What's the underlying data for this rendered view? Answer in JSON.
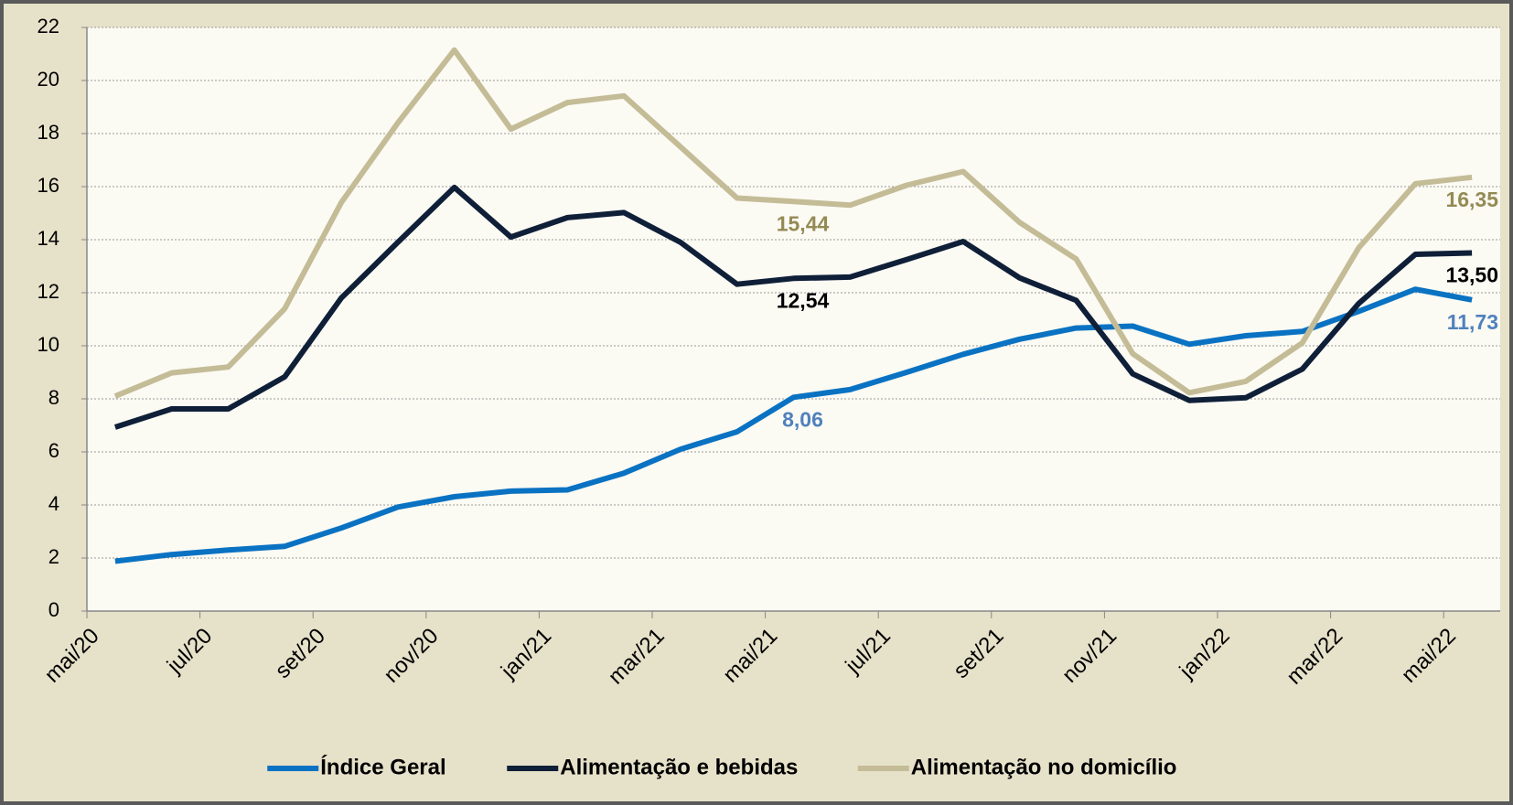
{
  "chart_data": {
    "type": "line",
    "categories": [
      "mai/20",
      null,
      "jul/20",
      null,
      "set/20",
      null,
      "nov/20",
      null,
      "jan/21",
      null,
      "mar/21",
      null,
      "mai/21",
      null,
      "jul/21",
      null,
      "set/21",
      null,
      "nov/21",
      null,
      "jan/22",
      null,
      "mar/22",
      null,
      "mai/22"
    ],
    "series": [
      {
        "name": "Índice Geral",
        "color": "#0a72c2",
        "label_color": "#4f81bd",
        "values": [
          1.88,
          2.13,
          2.3,
          2.44,
          3.13,
          3.92,
          4.31,
          4.52,
          4.57,
          5.2,
          6.1,
          6.76,
          8.06,
          8.35,
          9.0,
          9.68,
          10.25,
          10.67,
          10.74,
          10.06,
          10.38,
          10.54,
          11.3,
          12.13,
          11.73
        ],
        "value_labels": [
          null,
          null,
          null,
          null,
          null,
          null,
          null,
          null,
          null,
          null,
          null,
          null,
          "8,06",
          null,
          null,
          null,
          null,
          null,
          null,
          null,
          null,
          null,
          null,
          null,
          "11,73"
        ]
      },
      {
        "name": "Alimentação e bebidas",
        "color": "#0f1f38",
        "label_color": "#000000",
        "values": [
          6.93,
          7.62,
          7.62,
          8.83,
          11.8,
          13.9,
          15.97,
          14.1,
          14.83,
          15.02,
          13.9,
          12.32,
          12.54,
          12.59,
          13.25,
          13.93,
          12.56,
          11.71,
          8.94,
          7.94,
          8.04,
          9.12,
          11.6,
          13.45,
          13.5
        ],
        "value_labels": [
          null,
          null,
          null,
          null,
          null,
          null,
          null,
          null,
          null,
          null,
          null,
          null,
          "12,54",
          null,
          null,
          null,
          null,
          null,
          null,
          null,
          null,
          null,
          null,
          null,
          "13,50"
        ]
      },
      {
        "name": "Alimentação no domicílio",
        "color": "#c4bc96",
        "label_color": "#948a54",
        "values": [
          8.1,
          8.98,
          9.2,
          11.4,
          15.4,
          18.4,
          21.15,
          18.17,
          19.17,
          19.42,
          17.5,
          15.57,
          15.44,
          15.3,
          16.05,
          16.57,
          14.65,
          13.27,
          9.7,
          8.23,
          8.66,
          10.11,
          13.7,
          16.11,
          16.35
        ],
        "value_labels": [
          null,
          null,
          null,
          null,
          null,
          null,
          null,
          null,
          null,
          null,
          null,
          null,
          "15,44",
          null,
          null,
          null,
          null,
          null,
          null,
          null,
          null,
          null,
          null,
          null,
          "16,35"
        ]
      }
    ],
    "ylim": [
      0,
      22
    ],
    "yticks": [
      0,
      2,
      4,
      6,
      8,
      10,
      12,
      14,
      16,
      18,
      20,
      22
    ],
    "grid": true,
    "legend": "bottom"
  }
}
